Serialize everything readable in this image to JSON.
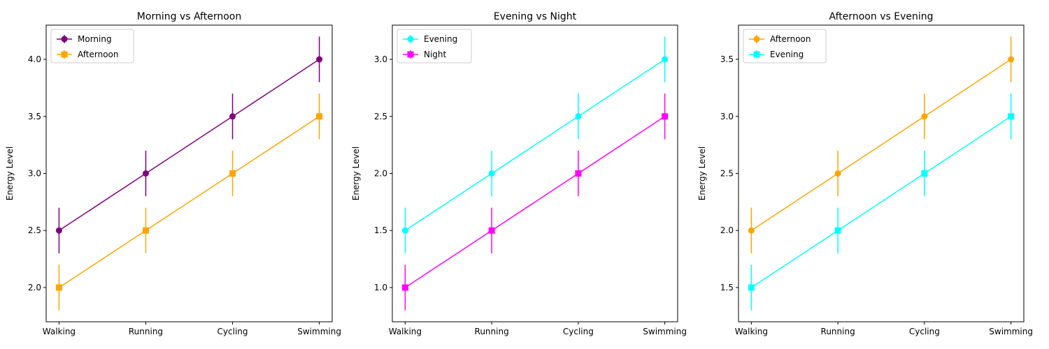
{
  "chart_data": [
    {
      "type": "line",
      "title": "Morning vs Afternoon",
      "xlabel": "",
      "ylabel": "Energy Level",
      "categories": [
        "Walking",
        "Running",
        "Cycling",
        "Swimming"
      ],
      "ylim": [
        1.7,
        4.3
      ],
      "yticks": [
        2.0,
        2.5,
        3.0,
        3.5,
        4.0
      ],
      "ytick_labels": [
        "2.0",
        "2.5",
        "3.0",
        "3.5",
        "4.0"
      ],
      "legend_position": "top-left",
      "grid": false,
      "series": [
        {
          "name": "Morning",
          "values": [
            2.5,
            3.0,
            3.5,
            4.0
          ],
          "errors": [
            0.2,
            0.2,
            0.2,
            0.2
          ],
          "color": "#800080",
          "marker": "circle"
        },
        {
          "name": "Afternoon",
          "values": [
            2.0,
            2.5,
            3.0,
            3.5
          ],
          "errors": [
            0.2,
            0.2,
            0.2,
            0.2
          ],
          "color": "#FFA500",
          "marker": "square"
        }
      ]
    },
    {
      "type": "line",
      "title": "Evening vs Night",
      "xlabel": "",
      "ylabel": "Energy Level",
      "categories": [
        "Walking",
        "Running",
        "Cycling",
        "Swimming"
      ],
      "ylim": [
        0.7,
        3.3
      ],
      "yticks": [
        1.0,
        1.5,
        2.0,
        2.5,
        3.0
      ],
      "ytick_labels": [
        "1.0",
        "1.5",
        "2.0",
        "2.5",
        "3.0"
      ],
      "legend_position": "top-left",
      "grid": false,
      "series": [
        {
          "name": "Evening",
          "values": [
            1.5,
            2.0,
            2.5,
            3.0
          ],
          "errors": [
            0.2,
            0.2,
            0.2,
            0.2
          ],
          "color": "#00FFFF",
          "marker": "circle"
        },
        {
          "name": "Night",
          "values": [
            1.0,
            1.5,
            2.0,
            2.5
          ],
          "errors": [
            0.2,
            0.2,
            0.2,
            0.2
          ],
          "color": "#FF00FF",
          "marker": "square"
        }
      ]
    },
    {
      "type": "line",
      "title": "Afternoon vs Evening",
      "xlabel": "",
      "ylabel": "Energy Level",
      "categories": [
        "Walking",
        "Running",
        "Cycling",
        "Swimming"
      ],
      "ylim": [
        1.2,
        3.8
      ],
      "yticks": [
        1.5,
        2.0,
        2.5,
        3.0,
        3.5
      ],
      "ytick_labels": [
        "1.5",
        "2.0",
        "2.5",
        "3.0",
        "3.5"
      ],
      "legend_position": "top-left",
      "grid": false,
      "series": [
        {
          "name": "Afternoon",
          "values": [
            2.0,
            2.5,
            3.0,
            3.5
          ],
          "errors": [
            0.2,
            0.2,
            0.2,
            0.2
          ],
          "color": "#FFA500",
          "marker": "circle"
        },
        {
          "name": "Evening",
          "values": [
            1.5,
            2.0,
            2.5,
            3.0
          ],
          "errors": [
            0.2,
            0.2,
            0.2,
            0.2
          ],
          "color": "#00FFFF",
          "marker": "square"
        }
      ]
    }
  ]
}
